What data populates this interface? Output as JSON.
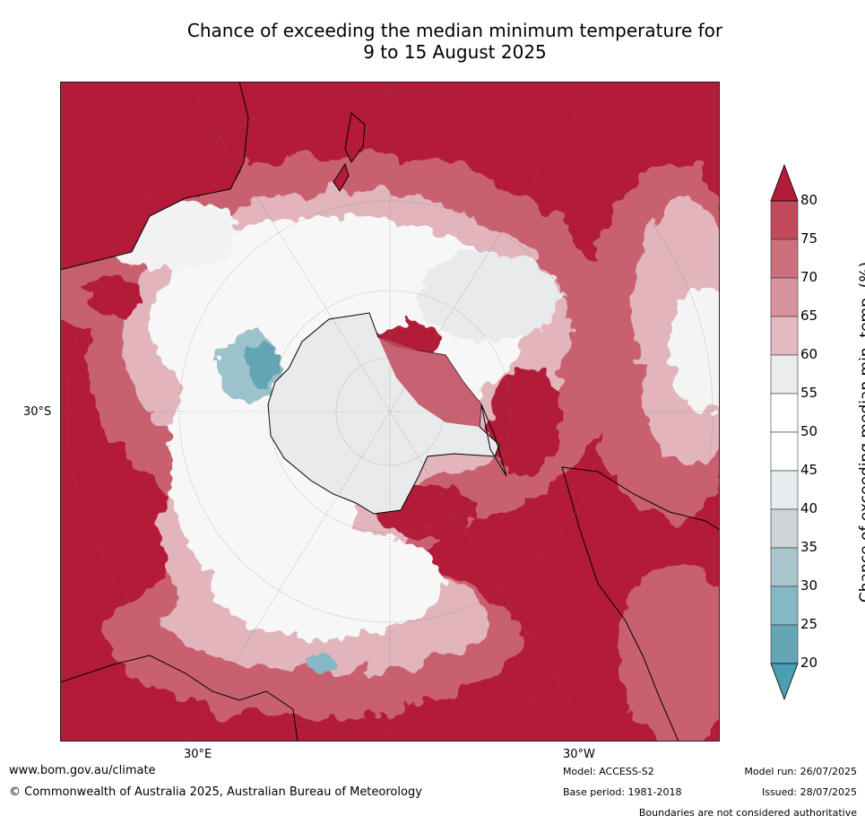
{
  "title": {
    "line1": "Chance of exceeding the median minimum temperature for",
    "line2": "9 to 15 August 2025"
  },
  "map": {
    "projection": "south-polar",
    "latitude_labels": [
      "30°S"
    ],
    "longitude_labels": [
      "30°E",
      "30°W"
    ]
  },
  "legend": {
    "title": "Chance of exceeding median min. temp. (%)",
    "ticks": [
      "80",
      "75",
      "70",
      "65",
      "60",
      "55",
      "50",
      "45",
      "40",
      "35",
      "30",
      "25",
      "20"
    ],
    "band_colors": [
      "#b31b38",
      "#c24a5d",
      "#cd6f7d",
      "#d8949e",
      "#e4bac0",
      "#ececec",
      "#ffffff",
      "#ffffff",
      "#e6ebee",
      "#cdd3d7",
      "#a8c5cd",
      "#86b7c4",
      "#64a6b5",
      "#4aa0b2"
    ],
    "high_color": "#b31b38",
    "low_color": "#4aa0b2"
  },
  "footer": {
    "website": "www.bom.gov.au/climate",
    "copyright": "© Commonwealth of Australia 2025, Australian Bureau of Meteorology",
    "model": "Model: ACCESS-S2",
    "base_period": "Base period: 1981-2018",
    "model_run": "Model run: 26/07/2025",
    "issued": "Issued: 28/07/2025",
    "disclaimer": "Boundaries are not considered authoritative"
  }
}
